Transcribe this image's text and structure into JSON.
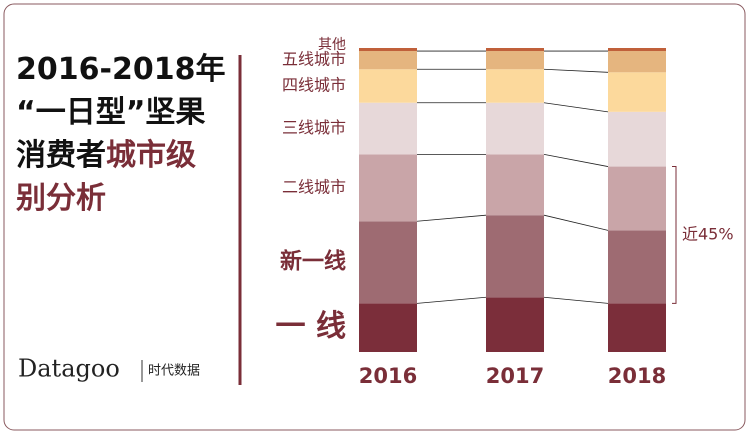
{
  "chart_data": {
    "type": "stacked_bar",
    "title_lines": [
      [
        "2016-2018年"
      ],
      [
        "“一日型”坚果"
      ],
      [
        "消费者",
        "城市级"
      ],
      [
        "别分析"
      ]
    ],
    "logo": [
      "Datagoo",
      "时代数据"
    ],
    "categories": [
      "2016",
      "2017",
      "2018"
    ],
    "ylim": [
      0,
      100
    ],
    "series": [
      {
        "name": "一 线",
        "color": "#7b2e3a",
        "values": [
          16,
          18,
          16
        ]
      },
      {
        "name": "新一线",
        "color": "#9e6b72",
        "values": [
          27,
          27,
          24
        ]
      },
      {
        "name": "二线城市",
        "color": "#c9a5a8",
        "values": [
          22,
          20,
          21
        ]
      },
      {
        "name": "三线城市",
        "color": "#e7d8d9",
        "values": [
          17,
          17,
          18
        ]
      },
      {
        "name": "四线城市",
        "color": "#fcd99c",
        "values": [
          11,
          11,
          13
        ]
      },
      {
        "name": "五线城市",
        "color": "#e5b57f",
        "values": [
          6,
          6,
          7
        ]
      },
      {
        "name": "其他",
        "color": "#c0603a",
        "values": [
          1,
          1,
          1
        ]
      }
    ],
    "annotation": {
      "text": "近45%",
      "value": 45
    }
  }
}
